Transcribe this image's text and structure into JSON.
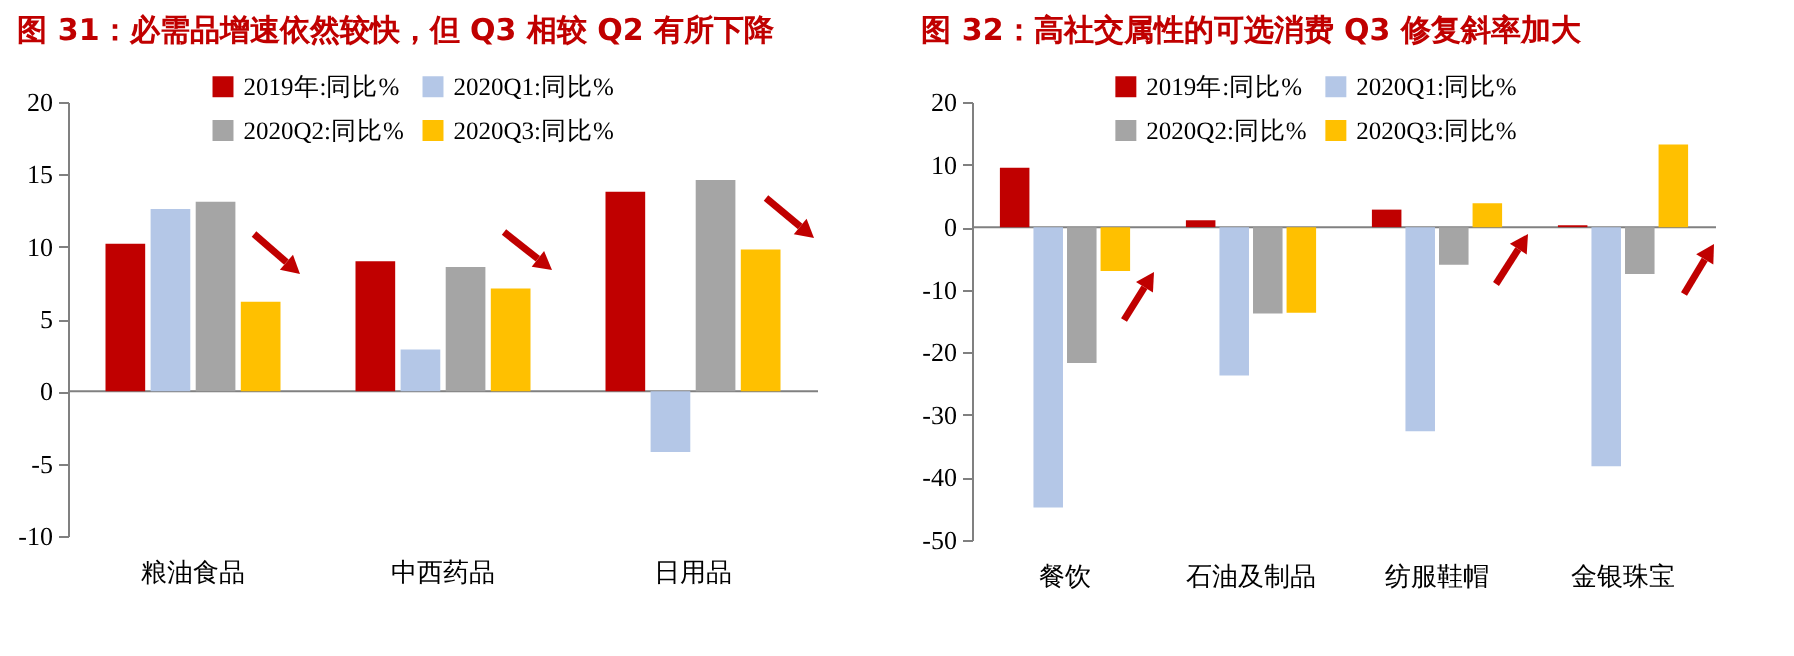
{
  "chart_data": [
    {
      "type": "bar",
      "title": "图 31：必需品增速依然较快，但 Q3 相较 Q2 有所下降",
      "categories": [
        "粮油食品",
        "中西药品",
        "日用品"
      ],
      "series": [
        {
          "name": "2019年:同比%",
          "color": "#c00000",
          "values": [
            10.2,
            9.0,
            13.8
          ]
        },
        {
          "name": "2020Q1:同比%",
          "color": "#b4c7e7",
          "values": [
            12.6,
            2.9,
            -4.2
          ]
        },
        {
          "name": "2020Q2:同比%",
          "color": "#a5a5a5",
          "values": [
            13.1,
            8.6,
            14.6
          ]
        },
        {
          "name": "2020Q3:同比%",
          "color": "#ffc000",
          "values": [
            6.2,
            7.1,
            9.8
          ]
        }
      ],
      "ylim": [
        -10,
        20
      ],
      "yticks": [
        -10,
        -5,
        0,
        5,
        10,
        15,
        20
      ],
      "legend": "top"
    },
    {
      "type": "bar",
      "title": "图 32：高社交属性的可选消费 Q3 修复斜率加大",
      "categories": [
        "餐饮",
        "石油及制品",
        "纺服鞋帽",
        "金银珠宝"
      ],
      "series": [
        {
          "name": "2019年:同比%",
          "color": "#c00000",
          "values": [
            9.5,
            1.1,
            2.8,
            0.3
          ]
        },
        {
          "name": "2020Q1:同比%",
          "color": "#b4c7e7",
          "values": [
            -44.8,
            -23.7,
            -32.6,
            -38.2
          ]
        },
        {
          "name": "2020Q2:同比%",
          "color": "#a5a5a5",
          "values": [
            -21.7,
            -13.8,
            -6.0,
            -7.5
          ]
        },
        {
          "name": "2020Q3:同比%",
          "color": "#ffc000",
          "values": [
            -7.0,
            -13.7,
            3.8,
            13.2
          ]
        }
      ],
      "ylim": [
        -50,
        20
      ],
      "yticks": [
        -50,
        -40,
        -30,
        -20,
        -10,
        0,
        10,
        20
      ],
      "legend": "top"
    }
  ]
}
